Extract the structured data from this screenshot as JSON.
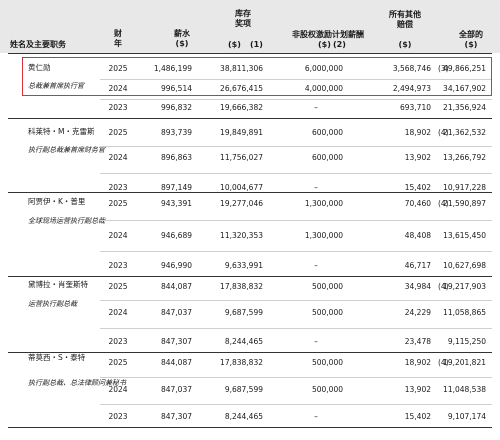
{
  "headers": {
    "name": "姓名及主要职务",
    "year": [
      "财",
      "年"
    ],
    "salary": [
      "薪水",
      "($)"
    ],
    "stock": [
      "库存",
      "奖项",
      "($)",
      "(1)"
    ],
    "nonequity": [
      "非股权激励计划薪酬",
      "($)",
      "(2)"
    ],
    "other": [
      "所有其他",
      "赔偿",
      "($)"
    ],
    "total": [
      "全部的",
      "($)"
    ]
  },
  "executives": [
    {
      "name": "黄仁勋",
      "title": "总裁兼首席执行官",
      "rows": [
        {
          "year": "2025",
          "salary": "1,486,199",
          "stock": "38,811,306",
          "nonequity": "6,000,000",
          "other": "3,568,746",
          "note": "(3)",
          "total": "49,866,251"
        },
        {
          "year": "2024",
          "salary": "996,514",
          "stock": "26,676,415",
          "nonequity": "4,000,000",
          "other": "2,494,973",
          "note": "",
          "total": "34,167,902"
        },
        {
          "year": "2023",
          "salary": "996,832",
          "stock": "19,666,382",
          "nonequity": "–",
          "other": "693,710",
          "note": "",
          "total": "21,356,924"
        }
      ]
    },
    {
      "name": "科莱特・M・克雷斯",
      "title": "执行副总裁兼首席财务官",
      "rows": [
        {
          "year": "2025",
          "salary": "893,739",
          "stock": "19,849,891",
          "nonequity": "600,000",
          "other": "18,902",
          "note": "(4)",
          "total": "21,362,532"
        },
        {
          "year": "2024",
          "salary": "896,863",
          "stock": "11,756,027",
          "nonequity": "600,000",
          "other": "13,902",
          "note": "",
          "total": "13,266,792"
        },
        {
          "year": "2023",
          "salary": "897,149",
          "stock": "10,004,677",
          "nonequity": "–",
          "other": "15,402",
          "note": "",
          "total": "10,917,228"
        }
      ]
    },
    {
      "name": "阿贾伊・K・普里",
      "title": "全球现场运营执行副总裁",
      "rows": [
        {
          "year": "2025",
          "salary": "943,391",
          "stock": "19,277,046",
          "nonequity": "1,300,000",
          "other": "70,460",
          "note": "(4)",
          "total": "21,590,897"
        },
        {
          "year": "2024",
          "salary": "946,689",
          "stock": "11,320,353",
          "nonequity": "1,300,000",
          "other": "48,408",
          "note": "",
          "total": "13,615,450"
        },
        {
          "year": "2023",
          "salary": "946,990",
          "stock": "9,633,991",
          "nonequity": "–",
          "other": "46,717",
          "note": "",
          "total": "10,627,698"
        }
      ]
    },
    {
      "name": "黛博拉・肖奎斯特",
      "title": "运营执行副总裁",
      "rows": [
        {
          "year": "2025",
          "salary": "844,087",
          "stock": "17,838,832",
          "nonequity": "500,000",
          "other": "34,984",
          "note": "(4)",
          "total": "19,217,903"
        },
        {
          "year": "2024",
          "salary": "847,037",
          "stock": "9,687,599",
          "nonequity": "500,000",
          "other": "24,229",
          "note": "",
          "total": "11,058,865"
        },
        {
          "year": "2023",
          "salary": "847,307",
          "stock": "8,244,465",
          "nonequity": "–",
          "other": "23,478",
          "note": "",
          "total": "9,115,250"
        }
      ]
    },
    {
      "name": "蒂莫西・S・泰特",
      "title": "执行副总裁、总法律顾问兼秘书",
      "rows": [
        {
          "year": "2025",
          "salary": "844,087",
          "stock": "17,838,832",
          "nonequity": "500,000",
          "other": "18,902",
          "note": "(4)",
          "total": "19,201,821"
        },
        {
          "year": "2024",
          "salary": "847,037",
          "stock": "9,687,599",
          "nonequity": "500,000",
          "other": "13,902",
          "note": "",
          "total": "11,048,538"
        },
        {
          "year": "2023",
          "salary": "847,307",
          "stock": "8,244,465",
          "nonequity": "–",
          "other": "15,402",
          "note": "",
          "total": "9,107,174"
        }
      ]
    }
  ]
}
